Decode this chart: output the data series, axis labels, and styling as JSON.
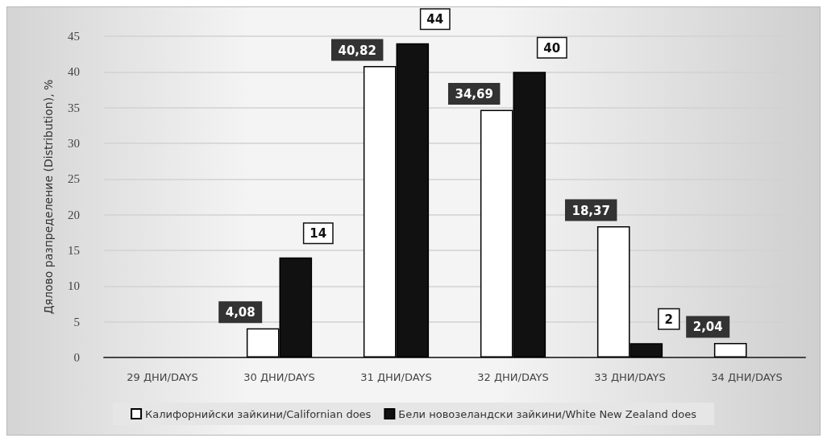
{
  "chart_data": {
    "type": "bar",
    "ylabel": "Дялово разпределение (Distribution), %",
    "categories": [
      "29 ДНИ/DAYS",
      "30 ДНИ/DAYS",
      "31 ДНИ/DAYS",
      "32 ДНИ/DAYS",
      "33 ДНИ/DAYS",
      "34 ДНИ/DAYS"
    ],
    "series": [
      {
        "name": "Калифорнийски зайкини/Californian does",
        "color": "#ffffff",
        "values": [
          null,
          4.08,
          40.82,
          34.69,
          18.37,
          2.04
        ],
        "value_labels": [
          null,
          "4,08",
          "40,82",
          "34,69",
          "18,37",
          "2,04"
        ]
      },
      {
        "name": "Бели новозеландски зайкини/White New Zealand does",
        "color": "#111111",
        "values": [
          null,
          14,
          44,
          40,
          2,
          null
        ],
        "value_labels": [
          null,
          "14",
          "44",
          "40",
          "2",
          null
        ]
      }
    ],
    "ylim": [
      0,
      45
    ],
    "yticks": [
      0,
      5,
      10,
      15,
      20,
      25,
      30,
      35,
      40,
      45
    ],
    "grid": "y",
    "legend": "bottom"
  }
}
